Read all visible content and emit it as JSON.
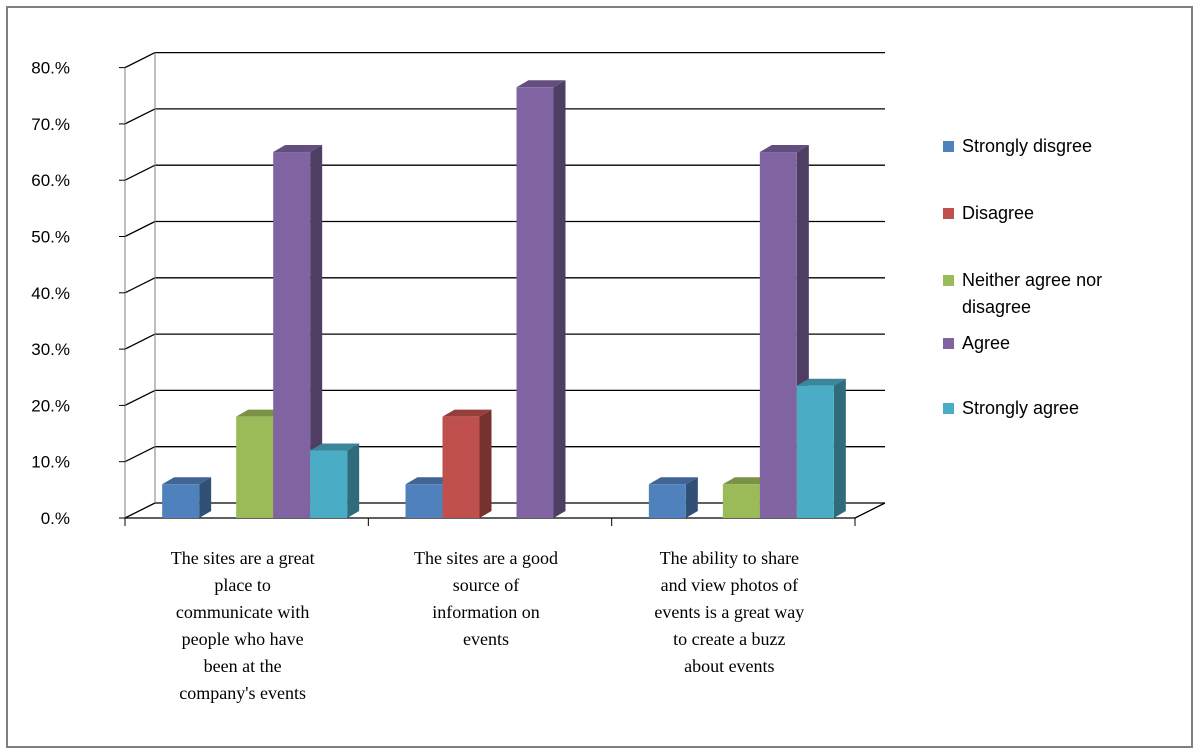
{
  "chart_data": {
    "type": "bar",
    "categories": [
      "The sites are a great place to communicate with people who have been at the company's events",
      "The sites are a good source of information on events",
      "The ability to share and view photos of events is a great way to create a buzz about events"
    ],
    "category_lines": [
      [
        "The sites are a great",
        "place to",
        "communicate with",
        "people who have",
        "been at the",
        "company's events"
      ],
      [
        "The sites are a good",
        "source of",
        "information on",
        "events"
      ],
      [
        "The ability to share",
        "and view photos of",
        "events is a great way",
        "to create a buzz",
        "about events"
      ]
    ],
    "series": [
      {
        "name": "Strongly disgree",
        "values": [
          6,
          6,
          6
        ],
        "color": "#4f81bd"
      },
      {
        "name": "Disagree",
        "values": [
          0,
          18,
          0
        ],
        "color": "#c0504d"
      },
      {
        "name": "Neither agree nor disagree",
        "values": [
          18,
          0,
          6
        ],
        "color": "#9bbb59"
      },
      {
        "name": "Agree",
        "values": [
          65,
          76.5,
          65
        ],
        "color": "#8064a2"
      },
      {
        "name": "Strongly agree",
        "values": [
          12,
          0,
          23.5
        ],
        "color": "#4bacc6"
      }
    ],
    "legend_lines": [
      [
        "Strongly disgree"
      ],
      [
        "Disagree"
      ],
      [
        "Neither agree nor",
        "disagree"
      ],
      [
        "Agree"
      ],
      [
        "Strongly agree"
      ]
    ],
    "y_ticks": [
      "0.%",
      "10.%",
      "20.%",
      "30.%",
      "40.%",
      "50.%",
      "60.%",
      "70.%",
      "80.%"
    ],
    "ylim": [
      0,
      80
    ],
    "grid": true,
    "legend_position": "right",
    "title": "",
    "xlabel": "",
    "ylabel": ""
  }
}
